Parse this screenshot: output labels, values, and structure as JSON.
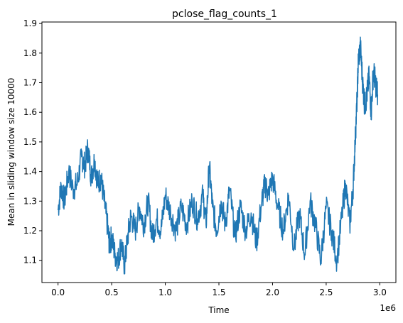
{
  "chart_data": {
    "type": "line",
    "title": "pclose_flag_counts_1",
    "xlabel": "Time",
    "ylabel": "Mean in sliding window size 10000",
    "x_offset_label": "1e6",
    "xlim": [
      -0.15,
      3.15
    ],
    "ylim": [
      1.025,
      1.905
    ],
    "x_ticks": [
      0.0,
      0.5,
      1.0,
      1.5,
      2.0,
      2.5,
      3.0
    ],
    "x_tick_labels": [
      "0.0",
      "0.5",
      "1.0",
      "1.5",
      "2.0",
      "2.5",
      "3.0"
    ],
    "y_ticks": [
      1.1,
      1.2,
      1.3,
      1.4,
      1.5,
      1.6,
      1.7,
      1.8,
      1.9
    ],
    "y_tick_labels": [
      "1.1",
      "1.2",
      "1.3",
      "1.4",
      "1.5",
      "1.6",
      "1.7",
      "1.8",
      "1.9"
    ],
    "grid": false,
    "legend": "none",
    "series": [
      {
        "color": "#1f77b4",
        "x": [
          0.0,
          0.03,
          0.06,
          0.1,
          0.14,
          0.18,
          0.22,
          0.25,
          0.28,
          0.31,
          0.34,
          0.37,
          0.4,
          0.43,
          0.46,
          0.48,
          0.5,
          0.53,
          0.56,
          0.59,
          0.62,
          0.65,
          0.68,
          0.72,
          0.76,
          0.8,
          0.84,
          0.88,
          0.92,
          0.96,
          1.0,
          1.05,
          1.1,
          1.15,
          1.2,
          1.25,
          1.3,
          1.35,
          1.38,
          1.41,
          1.44,
          1.48,
          1.52,
          1.56,
          1.6,
          1.65,
          1.7,
          1.75,
          1.8,
          1.85,
          1.9,
          1.93,
          1.96,
          2.0,
          2.05,
          2.1,
          2.15,
          2.2,
          2.25,
          2.3,
          2.35,
          2.4,
          2.45,
          2.5,
          2.55,
          2.6,
          2.65,
          2.68,
          2.72,
          2.75,
          2.77,
          2.79,
          2.8,
          2.82,
          2.84,
          2.86,
          2.88,
          2.9,
          2.92,
          2.94,
          2.96,
          2.98
        ],
        "values": [
          1.27,
          1.35,
          1.3,
          1.4,
          1.34,
          1.36,
          1.45,
          1.42,
          1.48,
          1.38,
          1.44,
          1.36,
          1.38,
          1.3,
          1.22,
          1.15,
          1.18,
          1.12,
          1.1,
          1.16,
          1.08,
          1.18,
          1.25,
          1.2,
          1.28,
          1.22,
          1.3,
          1.18,
          1.24,
          1.2,
          1.32,
          1.26,
          1.2,
          1.28,
          1.22,
          1.3,
          1.24,
          1.32,
          1.22,
          1.42,
          1.28,
          1.2,
          1.3,
          1.22,
          1.34,
          1.18,
          1.28,
          1.2,
          1.26,
          1.16,
          1.3,
          1.36,
          1.32,
          1.38,
          1.28,
          1.2,
          1.32,
          1.14,
          1.26,
          1.12,
          1.3,
          1.22,
          1.1,
          1.28,
          1.2,
          1.1,
          1.26,
          1.36,
          1.22,
          1.34,
          1.5,
          1.66,
          1.78,
          1.82,
          1.7,
          1.62,
          1.66,
          1.72,
          1.6,
          1.74,
          1.7,
          1.66
        ]
      }
    ]
  }
}
